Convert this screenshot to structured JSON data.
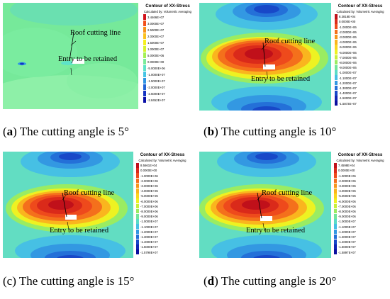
{
  "legend": {
    "title": "Contour of XX-Stress",
    "subtitle": "Calculated by: Volumetric Averaging"
  },
  "panels": [
    {
      "id": "a",
      "letter": "a",
      "caption_text": " The cutting angle is 5°",
      "roof_label": "Roof cutting line",
      "entry_label": "Entry to be retained",
      "levels": [
        "3.4466E+07",
        "3.0000E+07",
        "2.5000E+07",
        "2.0000E+07",
        "1.5000E+07",
        "1.0000E+07",
        "5.0000E+06",
        "0.0000E+00",
        "-5.0000E+06",
        "-1.0000E+07",
        "-1.5000E+07",
        "-2.0000E+07",
        "-2.5000E+07",
        "-2.8452E+07"
      ],
      "colors": [
        "#d2121a",
        "#f2501c",
        "#f7921c",
        "#fbc11e",
        "#f5f01e",
        "#d7f32b",
        "#a5f055",
        "#7aeb9a",
        "#5ee3c8",
        "#46c4e5",
        "#2f94e3",
        "#2164d6",
        "#1432c2",
        "#0b10a8"
      ]
    },
    {
      "id": "b",
      "letter": "b",
      "caption_text": " The cutting angle is 10°",
      "roof_label": "Roof cutting line",
      "entry_label": "Entry to be retained",
      "levels": [
        "8.3818E+04",
        "0.0000E+00",
        "-1.0000E+06",
        "-2.0000E+06",
        "-3.0000E+06",
        "-4.0000E+06",
        "-5.0000E+06",
        "-6.0000E+06",
        "-7.0000E+06",
        "-8.0000E+06",
        "-9.0000E+06",
        "-1.0000E+07",
        "-1.1000E+07",
        "-1.2000E+07",
        "-1.3000E+07",
        "-1.4000E+07",
        "-1.5000E+07",
        "-1.5873E+07"
      ],
      "colors": [
        "#c0101a",
        "#da2a1a",
        "#ee4a1c",
        "#f4701c",
        "#f7961d",
        "#fab51e",
        "#fbd620",
        "#eef222",
        "#c8f03c",
        "#9aec62",
        "#74e69a",
        "#5adcc6",
        "#46c0e4",
        "#3398e2",
        "#2470d8",
        "#1848c8",
        "#1024b4",
        "#0a0e9e"
      ]
    },
    {
      "id": "c",
      "letter": "c",
      "caption_text": " The cutting angle is 15°",
      "roof_label": "Roof cutting line",
      "entry_label": "Entry to be retained",
      "levels": [
        "8.5661E+04",
        "0.0000E+00",
        "-1.0000E+06",
        "-2.0000E+06",
        "-3.0000E+06",
        "-4.0000E+06",
        "-5.0000E+06",
        "-6.0000E+06",
        "-7.0000E+06",
        "-8.0000E+06",
        "-9.0000E+06",
        "-1.0000E+07",
        "-1.1000E+07",
        "-1.2000E+07",
        "-1.3000E+07",
        "-1.4000E+07",
        "-1.5000E+07",
        "-1.5798E+07"
      ],
      "colors": [
        "#c0101a",
        "#da2a1a",
        "#ee4a1c",
        "#f4701c",
        "#f7961d",
        "#fab51e",
        "#fbd620",
        "#eef222",
        "#c8f03c",
        "#9aec62",
        "#74e69a",
        "#5adcc6",
        "#46c0e4",
        "#3398e2",
        "#2470d8",
        "#1848c8",
        "#1024b4",
        "#0a0e9e"
      ]
    },
    {
      "id": "d",
      "letter": "d",
      "caption_text": " The cutting angle is 20°",
      "roof_label": "Roof cutting line",
      "entry_label": "Entry to be retained",
      "levels": [
        "7.4598E+04",
        "0.0000E+00",
        "-1.0000E+06",
        "-2.0000E+06",
        "-3.0000E+06",
        "-4.0000E+06",
        "-5.0000E+06",
        "-6.0000E+06",
        "-7.0000E+06",
        "-8.0000E+06",
        "-9.0000E+06",
        "-1.0000E+07",
        "-1.1000E+07",
        "-1.2000E+07",
        "-1.3000E+07",
        "-1.4000E+07",
        "-1.5000E+07",
        "-1.5897E+07"
      ],
      "colors": [
        "#c0101a",
        "#da2a1a",
        "#ee4a1c",
        "#f4701c",
        "#f7961d",
        "#fab51e",
        "#fbd620",
        "#eef222",
        "#c8f03c",
        "#9aec62",
        "#74e69a",
        "#5adcc6",
        "#46c0e4",
        "#3398e2",
        "#2470d8",
        "#1848c8",
        "#1024b4",
        "#0a0e9e"
      ]
    }
  ]
}
